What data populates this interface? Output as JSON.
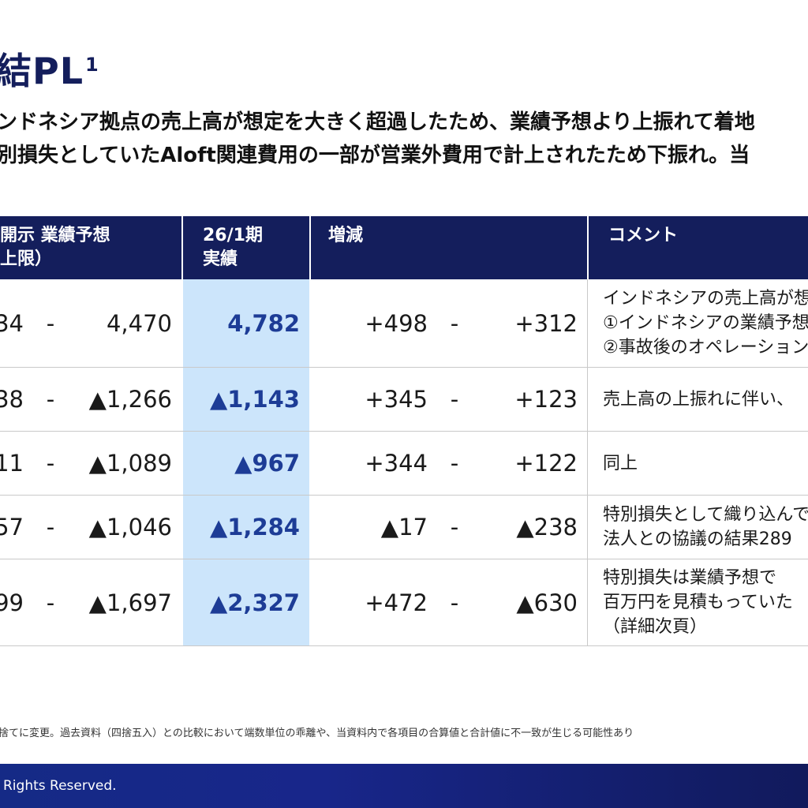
{
  "title": {
    "text": "結PL",
    "footnote_mark": "1"
  },
  "bullets": [
    "ンドネシア拠点の売上高が想定を大きく超過したため、業績予想より上振れて着地",
    "別損失としていたAloft関連費用の一部が営業外費用で計上されたため下振れ。当"
  ],
  "table": {
    "headers": {
      "forecast_line1": "開示 業績予想",
      "forecast_line2": "上限）",
      "actual_line1": "26/1期",
      "actual_line2": "実績",
      "change": "増減",
      "comment": "コメント"
    },
    "rows": [
      {
        "forecast_low": "34",
        "dash": "-",
        "forecast_high": "4,470",
        "actual": "4,782",
        "change_low": "+498",
        "change_high": "+312",
        "comment": [
          "インドネシアの売上高が想",
          "①インドネシアの業績予想",
          "②事故後のオペレーション"
        ]
      },
      {
        "forecast_low": "38",
        "dash": "-",
        "forecast_high": "▲1,266",
        "actual": "▲1,143",
        "change_low": "+345",
        "change_high": "+123",
        "comment": [
          "売上高の上振れに伴い、"
        ]
      },
      {
        "forecast_low": "11",
        "dash": "-",
        "forecast_high": "▲1,089",
        "actual": "▲967",
        "change_low": "+344",
        "change_high": "+122",
        "comment": [
          "同上"
        ]
      },
      {
        "forecast_low": "57",
        "dash": "-",
        "forecast_high": "▲1,046",
        "actual": "▲1,284",
        "change_low": "▲17",
        "change_high": "▲238",
        "comment": [
          "特別損失として織り込んで",
          "法人との協議の結果289"
        ]
      },
      {
        "forecast_low": "99",
        "dash": "-",
        "forecast_high": "▲1,697",
        "actual": "▲2,327",
        "change_low": "+472",
        "change_high": "▲630",
        "comment": [
          "特別損失は業績予想で",
          "百万円を見積もっていた",
          "（詳細次頁）"
        ]
      }
    ]
  },
  "footnote": "捨てに変更。過去資料（四捨五入）との比較において端数単位の乖離や、当資料内で各項目の合算値と合計値に不一致が生じる可能性あり",
  "footer": {
    "copyright": "Rights Reserved."
  },
  "colors": {
    "navy": "#141e5c",
    "actual_bg": "#cce5fb",
    "actual_text": "#1d3c96"
  }
}
